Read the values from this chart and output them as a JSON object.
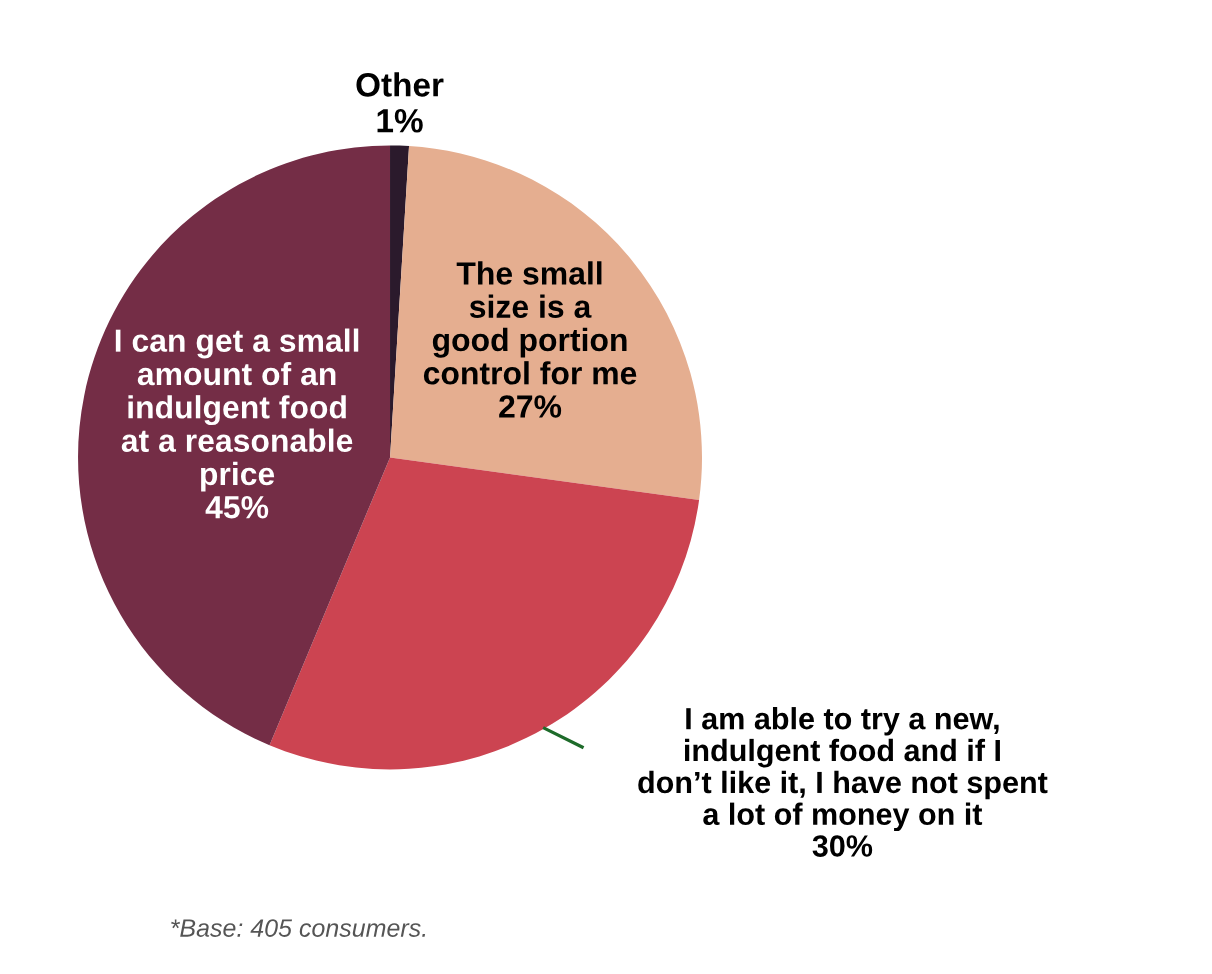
{
  "chart_data": {
    "type": "pie",
    "categories": [
      "Other",
      "The small\nsize is a\ngood portion\ncontrol for me",
      "I am able to try a new,\nindulgent food and if I\ndon’t like it, I have not spent\na lot of money on it",
      "I can get a small\namount of an\nindulgent food\nat a reasonable\nprice"
    ],
    "values": [
      1,
      27,
      30,
      45
    ],
    "value_labels": [
      "1%",
      "27%",
      "30%",
      "45%"
    ],
    "colors": [
      "#2b1a2c",
      "#e5ae90",
      "#cc4451",
      "#742d46"
    ],
    "annotations": [
      "*Base: 405 consumers."
    ]
  }
}
